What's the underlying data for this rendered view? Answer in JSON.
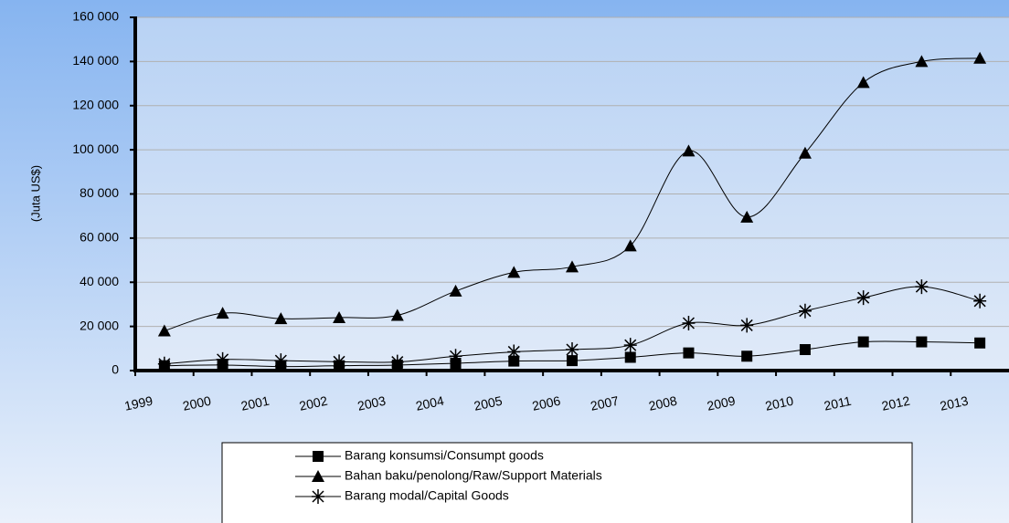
{
  "chart_data": {
    "type": "line",
    "y_label": "(Juta US$)",
    "categories": [
      "1999",
      "2000",
      "2001",
      "2002",
      "2003",
      "2004",
      "2005",
      "2006",
      "2007",
      "2008",
      "2009",
      "2010",
      "2011",
      "2012",
      "2013"
    ],
    "series": [
      {
        "name": "Barang konsumsi/Consumpt goods",
        "color": "#000000",
        "marker": "square",
        "values": [
          2200,
          2500,
          1800,
          2200,
          2500,
          3300,
          4300,
          4500,
          6000,
          8000,
          6500,
          9500,
          13000,
          13000,
          12500
        ]
      },
      {
        "name": "Bahan baku/penolong/Raw/Support Materials",
        "color": "#000000",
        "marker": "triangle",
        "values": [
          18000,
          26000,
          23500,
          24000,
          25000,
          36000,
          44500,
          47000,
          56500,
          99500,
          69500,
          98500,
          130500,
          140000,
          141500
        ]
      },
      {
        "name": "Barang modal/Capital Goods",
        "color": "#000000",
        "marker": "asterisk",
        "values": [
          3000,
          5000,
          4500,
          4000,
          3900,
          6500,
          8500,
          9500,
          11500,
          21500,
          20500,
          27000,
          33000,
          38000,
          31500
        ]
      }
    ],
    "ylim": [
      0,
      160000
    ],
    "yticks": [
      0,
      {
        "value": 20000,
        "label": "20 000"
      },
      {
        "value": 40000,
        "label": "40 000"
      },
      {
        "value": 60000,
        "label": "60 000"
      },
      {
        "value": 80000,
        "label": "80 000"
      },
      {
        "value": 100000,
        "label": "100 000"
      },
      {
        "value": 120000,
        "label": "120 000"
      },
      {
        "value": 140000,
        "label": "140 000"
      },
      {
        "value": 160000,
        "label": "160 000"
      }
    ],
    "grid": true
  }
}
